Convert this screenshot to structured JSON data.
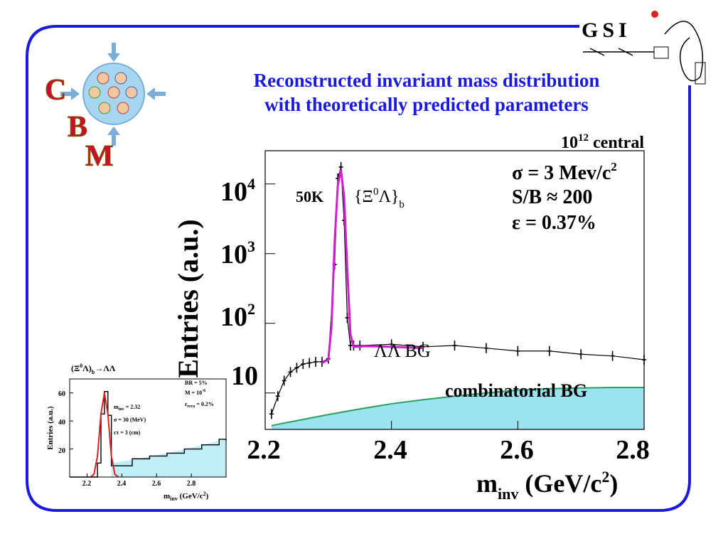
{
  "slide": {
    "title_line1": "Reconstructed invariant mass distribution",
    "title_line2": "with theoretically predicted parameters",
    "border_color": "#1a1adc"
  },
  "logos": {
    "cbm_letters": [
      "C",
      "B",
      "M"
    ],
    "cbm_color": "#c8102e",
    "gsi_text": "GSI"
  },
  "chart_data": [
    {
      "type": "line",
      "title": "10^12 central",
      "xlabel": "m_inv (GeV/c^2)",
      "ylabel": "Entries (a.u.)",
      "xlim": [
        2.2,
        2.8
      ],
      "ylim": [
        3,
        30000
      ],
      "y_scale": "log",
      "x_ticks": [
        "2.2",
        "2.4",
        "2.6",
        "2.8"
      ],
      "y_ticks": [
        {
          "value": 10,
          "base": "10",
          "exp": ""
        },
        {
          "value": 100,
          "base": "10",
          "exp": "2"
        },
        {
          "value": 1000,
          "base": "10",
          "exp": "3"
        },
        {
          "value": 10000,
          "base": "10",
          "exp": "4"
        }
      ],
      "params": {
        "sigma": "σ = 3 Mev/c",
        "sigma_exp": "2",
        "sb": "S/B ≈ 200",
        "eff": "ε = 0.37%"
      },
      "annotations": {
        "count": "50K",
        "resonance": "{Ξ",
        "resonance_sup": "0",
        "resonance_mid": "Λ}",
        "resonance_sub": "b",
        "ll_bg": "ΛΛ BG",
        "comb_bg": "combinatorial BG"
      },
      "series": [
        {
          "name": "data",
          "color": "#000000",
          "x": [
            2.21,
            2.22,
            2.23,
            2.24,
            2.25,
            2.26,
            2.27,
            2.28,
            2.29,
            2.3,
            2.31,
            2.315,
            2.32,
            2.325,
            2.33,
            2.335,
            2.34,
            2.35,
            2.4,
            2.45,
            2.5,
            2.55,
            2.6,
            2.65,
            2.7,
            2.75,
            2.8
          ],
          "y": [
            5,
            9,
            15,
            20,
            23,
            26,
            27,
            28,
            28,
            31,
            700,
            12000,
            17500,
            3000,
            120,
            48,
            48,
            48,
            50,
            46,
            48,
            44,
            40,
            40,
            36,
            34,
            30
          ]
        },
        {
          "name": "fit",
          "color": "#d020d0",
          "x": [
            2.29,
            2.3,
            2.305,
            2.31,
            2.315,
            2.32,
            2.325,
            2.33,
            2.335,
            2.34,
            2.36,
            2.4,
            2.45
          ],
          "y": [
            27,
            30,
            90,
            1500,
            9500,
            16000,
            6500,
            600,
            70,
            46,
            47,
            46,
            44
          ]
        },
        {
          "name": "combinatorial BG",
          "color": "#2aa060",
          "x": [
            2.21,
            2.23,
            2.25,
            2.3,
            2.35,
            2.4,
            2.45,
            2.5,
            2.55,
            2.6,
            2.65,
            2.7,
            2.75,
            2.8
          ],
          "y": [
            3.4,
            3.7,
            4.0,
            4.9,
            5.9,
            7.0,
            8.0,
            9.0,
            10.0,
            11.0,
            11.5,
            11.8,
            12.0,
            12.0
          ]
        }
      ]
    },
    {
      "type": "line",
      "title": "(Ξ0Λ)b→ΛΛ",
      "title_parts": {
        "a": "(Ξ",
        "sup": "0",
        "b": "Λ)",
        "sub": "b",
        "c": "→ΛΛ"
      },
      "xlabel": "m_inv (GeV/c^2)",
      "ylabel": "Entries (a.u.)",
      "xlim": [
        2.1,
        3.0
      ],
      "ylim": [
        0,
        70
      ],
      "x_ticks": [
        "2.2",
        "2.4",
        "2.6",
        "2.8"
      ],
      "y_ticks": [
        "20",
        "40",
        "60"
      ],
      "params_left": {
        "m": "m",
        "m_sub": "inv",
        "m_val": " = 2.32",
        "sigma": "σ = 30 (MeV)",
        "ctau": "cτ = 3 (cm)"
      },
      "params_right": {
        "br": "BR = 5%",
        "mult": "M = 10",
        "mult_exp": "-6",
        "eps": "ε",
        "eps_sub": "reco",
        "eps_val": " = 0.2%"
      },
      "series": [
        {
          "name": "data",
          "color": "#000000",
          "x": [
            2.1,
            2.2,
            2.26,
            2.28,
            2.3,
            2.32,
            2.34,
            2.38,
            2.46,
            2.56,
            2.66,
            2.76,
            2.86,
            2.96,
            3.0
          ],
          "y": [
            0,
            0,
            10,
            45,
            61,
            44,
            8,
            8,
            13,
            15,
            17,
            20,
            23,
            27,
            26
          ]
        },
        {
          "name": "fit",
          "color": "#e02020",
          "x": [
            2.22,
            2.24,
            2.26,
            2.28,
            2.3,
            2.32,
            2.34,
            2.36,
            2.38
          ],
          "y": [
            0,
            2,
            15,
            45,
            60,
            45,
            15,
            2,
            0
          ]
        },
        {
          "name": "background",
          "color": "#6fd0e0",
          "x": [
            2.34,
            2.5,
            2.7,
            2.9,
            3.0
          ],
          "y": [
            10,
            13,
            18,
            24,
            27
          ]
        }
      ]
    }
  ]
}
